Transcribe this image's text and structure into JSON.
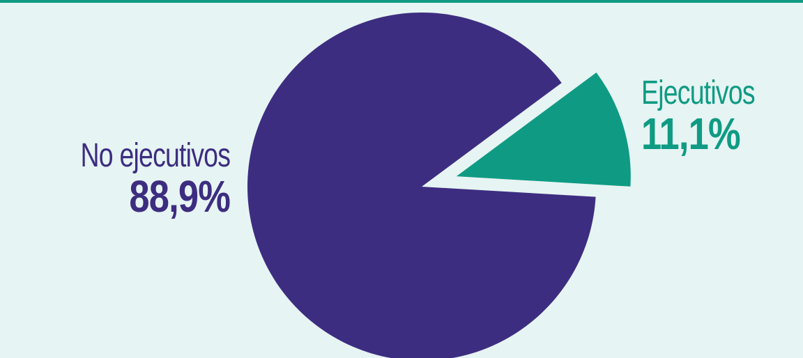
{
  "chart_data": {
    "type": "pie",
    "categories": [
      "No ejecutivos",
      "Ejecutivos"
    ],
    "values": [
      88.9,
      11.1
    ],
    "value_labels": [
      "88,9%",
      "11,1%"
    ],
    "colors": [
      "#3d2d80",
      "#0f9b83"
    ],
    "exploded": [
      false,
      true
    ],
    "title": ""
  },
  "background_color": "#e6f4f3",
  "accent_color": "#0f9b83"
}
